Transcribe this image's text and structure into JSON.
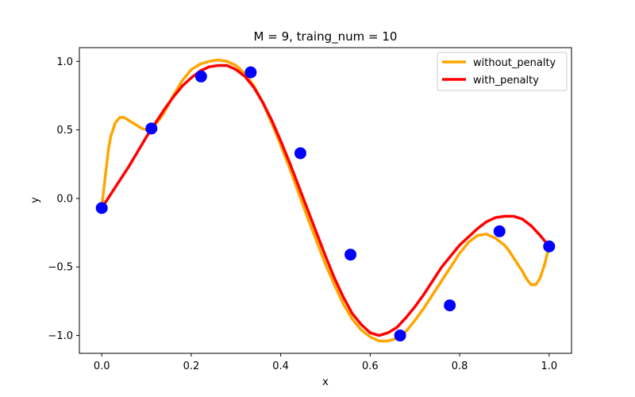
{
  "chart_data": {
    "type": "line",
    "title": "M = 9, traing_num = 10",
    "xlabel": "x",
    "ylabel": "y",
    "xlim": [
      -0.05,
      1.05
    ],
    "ylim": [
      -1.13,
      1.1
    ],
    "xticks": [
      0.0,
      0.2,
      0.4,
      0.6,
      0.8,
      1.0
    ],
    "xtick_labels": [
      "0.0",
      "0.2",
      "0.4",
      "0.6",
      "0.8",
      "1.0"
    ],
    "yticks": [
      -1.0,
      -0.5,
      0.0,
      0.5,
      1.0
    ],
    "ytick_labels": [
      "−1.0",
      "−0.5",
      "0.0",
      "0.5",
      "1.0"
    ],
    "grid": false,
    "legend": "top-right",
    "points": {
      "color": "#0000ff",
      "x": [
        0.0,
        0.111,
        0.222,
        0.333,
        0.444,
        0.556,
        0.667,
        0.778,
        0.889,
        1.0
      ],
      "y": [
        -0.07,
        0.51,
        0.89,
        0.92,
        0.33,
        -0.41,
        -1.0,
        -0.78,
        -0.24,
        -0.35
      ]
    },
    "series": [
      {
        "name": "without_penalty",
        "color": "#ffa500",
        "x": [
          0.0,
          0.005,
          0.01,
          0.015,
          0.02,
          0.03,
          0.04,
          0.05,
          0.06,
          0.07,
          0.08,
          0.09,
          0.1,
          0.11,
          0.12,
          0.13,
          0.14,
          0.15,
          0.16,
          0.18,
          0.2,
          0.22,
          0.24,
          0.26,
          0.28,
          0.3,
          0.32,
          0.34,
          0.36,
          0.38,
          0.4,
          0.42,
          0.44,
          0.46,
          0.48,
          0.5,
          0.52,
          0.54,
          0.56,
          0.58,
          0.6,
          0.62,
          0.64,
          0.66,
          0.68,
          0.7,
          0.72,
          0.74,
          0.76,
          0.78,
          0.8,
          0.82,
          0.84,
          0.86,
          0.88,
          0.9,
          0.91,
          0.92,
          0.93,
          0.94,
          0.95,
          0.96,
          0.97,
          0.98,
          0.99,
          1.0
        ],
        "y": [
          -0.07,
          0.08,
          0.22,
          0.36,
          0.45,
          0.55,
          0.59,
          0.59,
          0.57,
          0.55,
          0.53,
          0.51,
          0.5,
          0.51,
          0.54,
          0.58,
          0.63,
          0.69,
          0.75,
          0.86,
          0.94,
          0.98,
          1.0,
          1.01,
          1.0,
          0.97,
          0.91,
          0.82,
          0.7,
          0.55,
          0.39,
          0.22,
          0.04,
          -0.14,
          -0.31,
          -0.48,
          -0.63,
          -0.77,
          -0.88,
          -0.96,
          -1.01,
          -1.04,
          -1.04,
          -1.02,
          -0.97,
          -0.89,
          -0.8,
          -0.7,
          -0.6,
          -0.5,
          -0.4,
          -0.32,
          -0.27,
          -0.26,
          -0.29,
          -0.34,
          -0.38,
          -0.43,
          -0.48,
          -0.53,
          -0.59,
          -0.63,
          -0.63,
          -0.58,
          -0.48,
          -0.35
        ]
      },
      {
        "name": "with_penalty",
        "color": "#ff0000",
        "x": [
          0.0,
          0.02,
          0.04,
          0.06,
          0.08,
          0.1,
          0.12,
          0.14,
          0.16,
          0.18,
          0.2,
          0.22,
          0.24,
          0.26,
          0.28,
          0.3,
          0.32,
          0.34,
          0.36,
          0.38,
          0.4,
          0.42,
          0.44,
          0.46,
          0.48,
          0.5,
          0.52,
          0.54,
          0.56,
          0.58,
          0.6,
          0.62,
          0.64,
          0.66,
          0.68,
          0.7,
          0.72,
          0.74,
          0.76,
          0.78,
          0.8,
          0.82,
          0.84,
          0.86,
          0.88,
          0.9,
          0.92,
          0.94,
          0.96,
          0.98,
          1.0
        ],
        "y": [
          -0.07,
          0.03,
          0.13,
          0.23,
          0.34,
          0.45,
          0.55,
          0.65,
          0.74,
          0.82,
          0.88,
          0.93,
          0.96,
          0.97,
          0.97,
          0.94,
          0.89,
          0.81,
          0.7,
          0.57,
          0.42,
          0.26,
          0.09,
          -0.08,
          -0.25,
          -0.42,
          -0.58,
          -0.72,
          -0.84,
          -0.92,
          -0.98,
          -1.0,
          -0.98,
          -0.94,
          -0.87,
          -0.79,
          -0.7,
          -0.6,
          -0.5,
          -0.42,
          -0.34,
          -0.28,
          -0.22,
          -0.17,
          -0.14,
          -0.13,
          -0.13,
          -0.15,
          -0.2,
          -0.27,
          -0.35
        ]
      }
    ]
  }
}
